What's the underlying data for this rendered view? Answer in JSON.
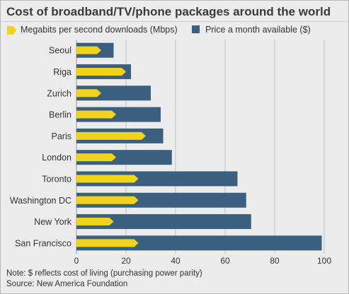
{
  "title": "Cost of broadband/TV/phone packages around the world",
  "legend": {
    "mbps_label": "Megabits per second downloads (Mbps)",
    "price_label": "Price a month available ($)"
  },
  "colors": {
    "mbps": "#f2d31b",
    "price": "#3a5f7f",
    "grid": "#c2c2c2",
    "background": "#ececec"
  },
  "notes": {
    "note": "Note: $ reflects cost of living (purchasing power parity)",
    "source": "Source: New America Foundation"
  },
  "chart_data": {
    "type": "bar",
    "orientation": "horizontal",
    "categories": [
      "Seoul",
      "Riga",
      "Zurich",
      "Berlin",
      "Paris",
      "London",
      "Toronto",
      "Washington DC",
      "New York",
      "San Francisco"
    ],
    "series": [
      {
        "name": "Megabits per second downloads (Mbps)",
        "values": [
          10,
          20,
          10,
          16,
          28,
          16,
          25,
          25,
          15,
          25
        ]
      },
      {
        "name": "Price a month available ($)",
        "values": [
          15,
          22,
          30,
          34,
          35,
          38.5,
          65,
          68.5,
          70.5,
          99
        ]
      }
    ],
    "xlim": [
      0,
      100
    ],
    "xticks": [
      0,
      20,
      40,
      60,
      80,
      100
    ],
    "grid": true,
    "legend_position": "top"
  }
}
